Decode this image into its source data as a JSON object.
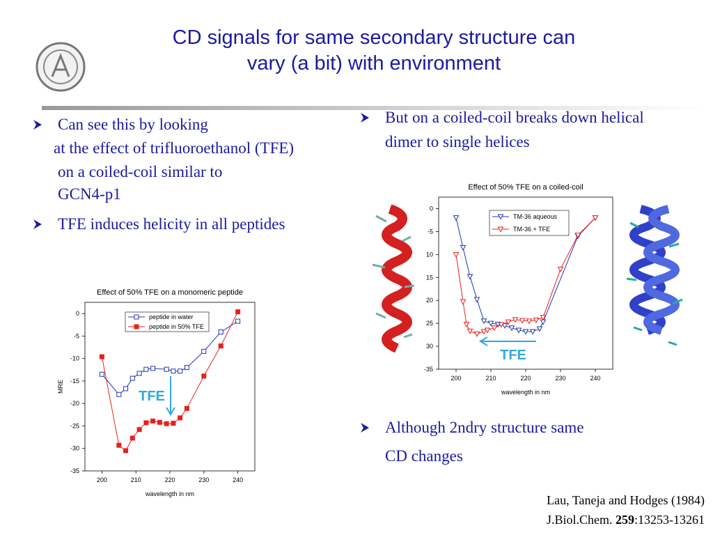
{
  "title": [
    "CD signals for same secondary structure can",
    "vary (a bit) with environment"
  ],
  "bullets_left": [
    {
      "lines": [
        "Can see this by looking",
        "at the effect of trifluoroethanol (TFE)",
        "on a coiled-coil similar to",
        "GCN4-p1"
      ]
    },
    {
      "lines": [
        "TFE induces helicity in all peptides"
      ]
    }
  ],
  "bullets_right": [
    {
      "lines": [
        "But on a coiled-coil breaks down helical",
        "dimer to single helices"
      ]
    },
    {
      "lines": [
        "Although 2ndry structure same",
        "CD changes"
      ]
    }
  ],
  "citation": {
    "line1": "Lau, Taneja and Hodges (1984)",
    "journal": "J.Biol.Chem. ",
    "volume": "259",
    "pages": ":13253-13261"
  },
  "chart_data": [
    {
      "type": "line",
      "title": "Effect of 50% TFE on a monomeric peptide",
      "x_label": "wavelength in nm",
      "y_label": "MRE",
      "xlim": [
        195,
        245
      ],
      "xticks": [
        200,
        210,
        220,
        230,
        240
      ],
      "ylim": [
        -35,
        2.5
      ],
      "yticks": [
        0,
        -5,
        -10,
        -15,
        -20,
        -25,
        -30,
        -35
      ],
      "legend": "upper center",
      "annotation": "TFE",
      "series": [
        {
          "name": "peptide in water",
          "color": "#1f35b0",
          "marker": "square",
          "x": [
            200,
            205,
            207,
            209,
            211,
            213,
            215,
            219,
            221,
            223,
            225,
            230,
            235,
            240
          ],
          "values": [
            -13.5,
            -18.0,
            -16.7,
            -14.4,
            -13.3,
            -12.4,
            -12.2,
            -12.4,
            -12.8,
            -12.8,
            -12.0,
            -8.4,
            -4.1,
            -1.7
          ]
        },
        {
          "name": "peptide in 50% TFE",
          "color": "#e8201c",
          "marker": "square-filled",
          "x": [
            200,
            205,
            207,
            209,
            211,
            213,
            215,
            217,
            219,
            221,
            223,
            225,
            230,
            235,
            240
          ],
          "values": [
            -9.6,
            -29.3,
            -30.5,
            -27.7,
            -25.8,
            -24.3,
            -23.9,
            -24.2,
            -24.5,
            -24.4,
            -23.2,
            -21.1,
            -13.9,
            -7.2,
            0.4
          ]
        }
      ]
    },
    {
      "type": "line",
      "title": "Effect of 50% TFE on a coiled-coil",
      "x_label": "wavelength in nm",
      "xlim": [
        195,
        245
      ],
      "xticks": [
        200,
        210,
        220,
        230,
        240
      ],
      "ylim": [
        -35,
        2.5
      ],
      "yticks": [
        0,
        -5,
        {
          "value": -10,
          "label": "10"
        },
        {
          "value": -15,
          "label": "15"
        },
        {
          "value": -20,
          "label": "20"
        },
        {
          "value": -25,
          "label": "25"
        },
        {
          "value": -30,
          "label": "30"
        },
        -35
      ],
      "legend": "upper right",
      "annotation": "TFE",
      "series": [
        {
          "name": "TM-36 aqueous",
          "color": "#1f35b0",
          "marker": "triangle-down",
          "x": [
            200,
            202,
            204,
            206,
            208,
            210,
            212,
            214,
            216,
            218,
            220,
            222,
            224,
            225,
            235,
            240
          ],
          "values": [
            -2.0,
            -8.5,
            -14.8,
            -19.8,
            -24.5,
            -25.0,
            -25.2,
            -25.5,
            -26.0,
            -26.5,
            -26.8,
            -26.8,
            -26.2,
            -24.7,
            -6.0,
            -2.0
          ]
        },
        {
          "name": "TM-36 + TFE",
          "color": "#e8201c",
          "marker": "triangle-down",
          "x": [
            200,
            202,
            203,
            204,
            206,
            208,
            209,
            211,
            213,
            215,
            217,
            219,
            221,
            223,
            225,
            230,
            235,
            240
          ],
          "values": [
            -10.0,
            -20.3,
            -25.2,
            -26.7,
            -27.3,
            -26.8,
            -26.5,
            -26.0,
            -25.3,
            -24.7,
            -24.2,
            -24.4,
            -24.5,
            -24.3,
            -23.7,
            -13.2,
            -5.8,
            -2.0
          ]
        }
      ]
    }
  ]
}
